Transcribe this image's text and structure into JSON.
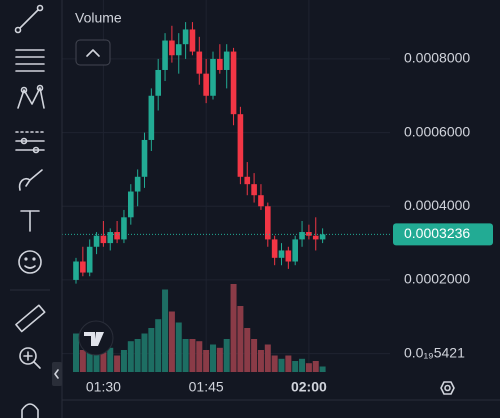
{
  "chart_data": {
    "type": "candlestick",
    "categories": [
      null,
      null,
      null,
      null,
      "01:30",
      null,
      null,
      null,
      null,
      null,
      null,
      null,
      null,
      null,
      null,
      null,
      null,
      null,
      null,
      "01:45",
      null,
      null,
      null,
      null,
      null,
      null,
      null,
      null,
      null,
      null,
      null,
      null,
      null,
      null,
      "02:00",
      null,
      null
    ],
    "open": [
      0.0002,
      0.00025,
      0.00022,
      0.00029,
      0.00032,
      0.0003,
      0.00033,
      0.00031,
      0.00037,
      0.00044,
      0.00048,
      0.00058,
      0.0007,
      0.00077,
      0.00085,
      0.00081,
      0.00084,
      0.00088,
      0.00082,
      0.00076,
      0.0007,
      0.0008,
      0.00077,
      0.00082,
      0.00065,
      0.00048,
      0.00046,
      0.00043,
      0.0004,
      0.00031,
      0.00026,
      0.00028,
      0.00025,
      0.00031,
      0.00033,
      0.00032,
      0.00031
    ],
    "high": [
      0.00026,
      0.00029,
      0.00031,
      0.00033,
      0.00036,
      0.00034,
      0.00036,
      0.00039,
      0.00046,
      0.0005,
      0.0006,
      0.00072,
      0.0008,
      0.00087,
      0.00089,
      0.00087,
      0.0009,
      0.0009,
      0.00086,
      0.0008,
      0.00082,
      0.00084,
      0.00084,
      0.00083,
      0.00067,
      0.00052,
      0.00049,
      0.00046,
      0.00041,
      0.00032,
      0.0003,
      0.00029,
      0.00032,
      0.00036,
      0.00035,
      0.00037,
      0.00034
    ],
    "low": [
      0.00019,
      0.00021,
      0.00021,
      0.00027,
      0.00029,
      0.00028,
      0.0003,
      0.0003,
      0.00035,
      0.0004,
      0.00045,
      0.00055,
      0.00066,
      0.00074,
      0.00079,
      0.00076,
      0.0008,
      0.00081,
      0.00073,
      0.00068,
      0.00069,
      0.00076,
      0.00072,
      0.00062,
      0.00046,
      0.00043,
      0.00041,
      0.00039,
      0.00029,
      0.00024,
      0.00024,
      0.00023,
      0.00024,
      0.00029,
      0.00031,
      0.00028,
      0.0003
    ],
    "close": [
      0.00025,
      0.00022,
      0.00029,
      0.00032,
      0.0003,
      0.00033,
      0.00031,
      0.00037,
      0.00044,
      0.00048,
      0.00058,
      0.0007,
      0.00077,
      0.00085,
      0.00081,
      0.00084,
      0.00088,
      0.00082,
      0.00076,
      0.0007,
      0.0008,
      0.00077,
      0.00082,
      0.00065,
      0.00048,
      0.00046,
      0.00043,
      0.0004,
      0.00031,
      0.00026,
      0.00028,
      0.00025,
      0.00031,
      0.00033,
      0.00032,
      0.00031,
      0.0003236
    ],
    "volume": {
      "name": "Volume",
      "values": [
        35,
        20,
        30,
        25,
        18,
        22,
        15,
        20,
        28,
        30,
        35,
        40,
        48,
        75,
        55,
        45,
        30,
        30,
        28,
        20,
        25,
        22,
        30,
        80,
        60,
        40,
        30,
        20,
        25,
        15,
        12,
        15,
        10,
        12,
        8,
        10,
        5
      ]
    },
    "up_color": "#22ab94",
    "down_color": "#f23645",
    "volume_up_color": "#1d6e63",
    "volume_down_color": "#8a3b47",
    "last_price": 0.0003236,
    "ylim": [
      -5e-05,
      0.00096
    ],
    "yticks": [
      {
        "value": 5.421e-20,
        "label": "0.0₁₉5421"
      },
      {
        "value": 0.0002,
        "label": "0.0002000"
      },
      {
        "value": 0.0004,
        "label": "0.0004000"
      },
      {
        "value": 0.0006,
        "label": "0.0006000"
      },
      {
        "value": 0.0008,
        "label": "0.0008000"
      }
    ],
    "grid": true
  }
}
